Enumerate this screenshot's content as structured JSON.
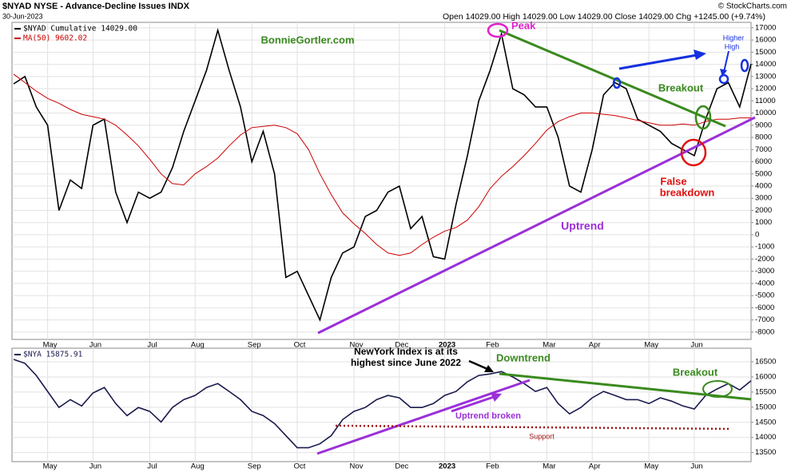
{
  "header": {
    "symbol_line": "$NYAD NYSE - Advance-Decline Issues INDX",
    "date": "30-Jun-2023",
    "quote": "Open 14029.00 High 14029.00 Low 14029.00 Close 14029.00 Chg +1245.00 (+9.74%)",
    "copyright": "© StockCharts.com"
  },
  "chart_data": [
    {
      "type": "line",
      "categories": [
        null,
        null,
        null,
        "May",
        null,
        null,
        null,
        "Jun",
        null,
        null,
        null,
        null,
        "Jul",
        null,
        null,
        null,
        "Aug",
        null,
        null,
        null,
        null,
        "Sep",
        null,
        null,
        null,
        "Oct",
        null,
        null,
        null,
        null,
        "Nov",
        null,
        null,
        null,
        "Dec",
        null,
        null,
        null,
        "2023",
        null,
        null,
        null,
        "Feb",
        null,
        null,
        null,
        null,
        "Mar",
        null,
        null,
        null,
        "Apr",
        null,
        null,
        null,
        null,
        "May",
        null,
        null,
        null,
        "Jun",
        null,
        null,
        null,
        null,
        null
      ],
      "series": [
        {
          "name": "$NYAD Cumulative 14029.00",
          "color": "#000000",
          "values": [
            12400,
            13000,
            10500,
            9000,
            2000,
            4500,
            3800,
            9000,
            9500,
            3500,
            1000,
            3500,
            3000,
            3500,
            5500,
            8500,
            11000,
            13500,
            16800,
            13500,
            10500,
            6000,
            8500,
            5000,
            -3500,
            -3000,
            -5000,
            -7000,
            -3500,
            -1500,
            -1000,
            1500,
            2000,
            3500,
            4000,
            500,
            1500,
            -1800,
            -2000,
            2500,
            6500,
            11000,
            13500,
            16500,
            12000,
            11500,
            10500,
            10500,
            8000,
            4000,
            3500,
            7000,
            11500,
            12500,
            12000,
            9500,
            9000,
            8500,
            7500,
            7000,
            6500,
            9500,
            12000,
            12500,
            10500,
            14029
          ]
        },
        {
          "name": "MA(50) 9602.02",
          "color": "#cc0000",
          "values": [
            13200,
            12500,
            11800,
            11200,
            10800,
            10300,
            9900,
            9700,
            9500,
            9000,
            8200,
            7300,
            6200,
            5000,
            4200,
            4100,
            5000,
            5600,
            6300,
            7300,
            8200,
            8800,
            8900,
            9000,
            8800,
            8300,
            7000,
            5000,
            3300,
            1800,
            900,
            100,
            -800,
            -1500,
            -1700,
            -1500,
            -800,
            -200,
            300,
            600,
            1200,
            2300,
            3800,
            4800,
            5600,
            6500,
            7500,
            8600,
            9300,
            9700,
            10000,
            10000,
            9900,
            9800,
            9600,
            9400,
            9200,
            9000,
            9000,
            9100,
            9000,
            9300,
            9500,
            9500,
            9600,
            9602
          ]
        }
      ],
      "ylim": [
        -8600,
        17450
      ],
      "yticks": [
        17000,
        16000,
        15000,
        14000,
        13000,
        12000,
        11000,
        10000,
        9000,
        8000,
        7000,
        6000,
        5000,
        4000,
        3000,
        2000,
        1000,
        0,
        -1000,
        -2000,
        -3000,
        -4000,
        -5000,
        -6000,
        -7000,
        -8000
      ],
      "grid": true,
      "annotations": [
        "BonnieGortler.com",
        "Peak",
        "Breakout",
        "Higher",
        "High",
        "False",
        "breakdown",
        "Uptrend"
      ]
    },
    {
      "type": "line",
      "categories": [
        null,
        null,
        null,
        "May",
        null,
        null,
        null,
        "Jun",
        null,
        null,
        null,
        null,
        "Jul",
        null,
        null,
        null,
        "Aug",
        null,
        null,
        null,
        null,
        "Sep",
        null,
        null,
        null,
        "Oct",
        null,
        null,
        null,
        null,
        "Nov",
        null,
        null,
        null,
        "Dec",
        null,
        null,
        null,
        "2023",
        null,
        null,
        null,
        "Feb",
        null,
        null,
        null,
        null,
        "Mar",
        null,
        null,
        null,
        "Apr",
        null,
        null,
        null,
        null,
        "May",
        null,
        null,
        null,
        "Jun",
        null,
        null,
        null,
        null,
        null
      ],
      "series": [
        {
          "name": "$NYA 15875.91",
          "color": "#1a1a4e",
          "values": [
            16580,
            16450,
            16050,
            15520,
            14990,
            15250,
            15040,
            15470,
            15650,
            15120,
            14720,
            14990,
            14860,
            14510,
            14990,
            15250,
            15390,
            15650,
            15780,
            15520,
            15250,
            14860,
            14720,
            14460,
            14060,
            13660,
            13660,
            13790,
            14060,
            14590,
            14860,
            14990,
            15250,
            15390,
            15310,
            14990,
            14990,
            15120,
            15390,
            15520,
            15840,
            16050,
            16100,
            16180,
            16000,
            15780,
            15520,
            15650,
            15120,
            14780,
            14990,
            15310,
            15520,
            15390,
            15250,
            15250,
            15120,
            15310,
            15200,
            15040,
            14940,
            15390,
            15600,
            15780,
            15570,
            15875.91
          ]
        }
      ],
      "ylim": [
        13200,
        16950
      ],
      "yticks": [
        16500,
        16000,
        15500,
        15000,
        14500,
        14000,
        13500
      ],
      "grid": true,
      "annotations": [
        "NewYork Index is at its",
        "highest since June 2022",
        "Downtrend",
        "Breakout",
        "Uptrend broken",
        "Support"
      ]
    }
  ]
}
